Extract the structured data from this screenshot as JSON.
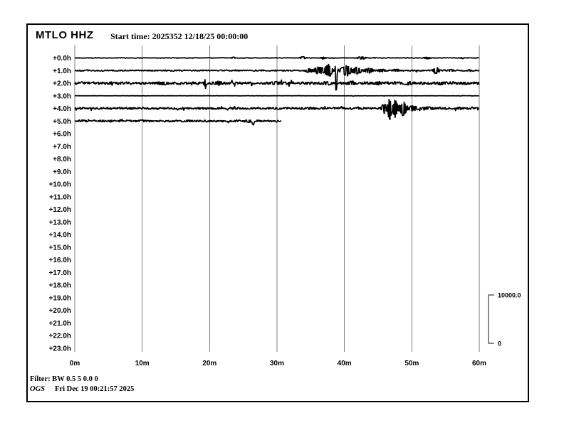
{
  "header": {
    "station": "MTLO HHZ",
    "start_time_label": "Start time: 2025352 12/18/25 00:00:00"
  },
  "footer": {
    "filter_label": "Filter: BW 0.5 5 0.0 0",
    "agency": "OGS",
    "generated_label": "Fri Dec 19 00:21:57 2025"
  },
  "scale": {
    "max_label": "10000.0",
    "min_label": "0"
  },
  "colors": {
    "trace": "#000000",
    "grid": "#7d7d7d",
    "frame": "#000000",
    "background": "#ffffff"
  },
  "chart_data": {
    "type": "line",
    "title": "MTLO HHZ helicorder, 24 hourly rows of 60 minutes",
    "x_axis": {
      "unit": "minutes",
      "range": [
        0,
        60
      ],
      "tick_labels": [
        "0m",
        "10m",
        "20m",
        "30m",
        "40m",
        "50m",
        "60m"
      ],
      "grid": true
    },
    "y_axis": {
      "unit": "hours after start",
      "rows": 24
    },
    "scale_max_counts": 10000,
    "rows": [
      {
        "label": "+0.0h",
        "has_trace": true,
        "start_min": 0,
        "end_min": 60,
        "noise_counts": 70,
        "events": [
          {
            "minute": 23.5,
            "amp_counts": 200,
            "duration_min": 1.0
          },
          {
            "minute": 33.8,
            "amp_counts": 280,
            "duration_min": 1.5
          },
          {
            "minute": 36.8,
            "amp_counts": 300,
            "duration_min": 1.0
          },
          {
            "minute": 42.5,
            "amp_counts": 320,
            "duration_min": 2.0
          },
          {
            "minute": 52.3,
            "amp_counts": 260,
            "duration_min": 1.5
          },
          {
            "minute": 57.5,
            "amp_counts": 200,
            "duration_min": 0.8
          }
        ]
      },
      {
        "label": "+1.0h",
        "has_trace": true,
        "start_min": 0,
        "end_min": 60,
        "noise_counts": 150,
        "events": [
          {
            "minute": 34.8,
            "amp_counts": 500,
            "duration_min": 2.0
          },
          {
            "minute": 36.3,
            "amp_counts": 900,
            "duration_min": 2.4
          },
          {
            "minute": 37.6,
            "amp_counts": 1600,
            "duration_min": 1.6
          },
          {
            "minute": 38.77,
            "amp_counts": 6800,
            "duration_min": 0.3
          },
          {
            "minute": 40.3,
            "amp_counts": 1300,
            "duration_min": 2.4
          },
          {
            "minute": 41.8,
            "amp_counts": 900,
            "duration_min": 2.0
          },
          {
            "minute": 43.6,
            "amp_counts": 600,
            "duration_min": 2.2
          },
          {
            "minute": 45.5,
            "amp_counts": 400,
            "duration_min": 2.0
          },
          {
            "minute": 47.6,
            "amp_counts": 350,
            "duration_min": 1.5
          },
          {
            "minute": 53.6,
            "amp_counts": 700,
            "duration_min": 1.6
          },
          {
            "minute": 55.8,
            "amp_counts": 300,
            "duration_min": 1.5
          },
          {
            "minute": 58.5,
            "amp_counts": 250,
            "duration_min": 1.0
          }
        ]
      },
      {
        "label": "+2.0h",
        "has_trace": true,
        "start_min": 0,
        "end_min": 60,
        "noise_counts": 300,
        "events": [
          {
            "minute": 13.0,
            "amp_counts": 420,
            "duration_min": 3.0
          },
          {
            "minute": 19.35,
            "amp_counts": 1250,
            "duration_min": 0.5
          },
          {
            "minute": 21.3,
            "amp_counts": 500,
            "duration_min": 2.0
          },
          {
            "minute": 30.0,
            "amp_counts": 380,
            "duration_min": 4.0
          },
          {
            "minute": 37.5,
            "amp_counts": 430,
            "duration_min": 3.0
          },
          {
            "minute": 41.0,
            "amp_counts": 460,
            "duration_min": 2.5
          },
          {
            "minute": 45.0,
            "amp_counts": 380,
            "duration_min": 3.0
          },
          {
            "minute": 49.5,
            "amp_counts": 400,
            "duration_min": 3.0
          },
          {
            "minute": 54.5,
            "amp_counts": 380,
            "duration_min": 3.0
          },
          {
            "minute": 58.0,
            "amp_counts": 350,
            "duration_min": 2.0
          }
        ]
      },
      {
        "label": "+3.0h",
        "has_trace": true,
        "start_min": 0,
        "end_min": 60,
        "noise_counts": 30,
        "events": [
          {
            "minute": 41.3,
            "amp_counts": 130,
            "duration_min": 0.3
          },
          {
            "minute": 57.2,
            "amp_counts": 110,
            "duration_min": 0.4
          }
        ]
      },
      {
        "label": "+4.0h",
        "has_trace": true,
        "start_min": 0,
        "end_min": 60,
        "noise_counts": 230,
        "events": [
          {
            "minute": 30.0,
            "amp_counts": 250,
            "duration_min": 2.0
          },
          {
            "minute": 35.0,
            "amp_counts": 300,
            "duration_min": 2.0
          },
          {
            "minute": 45.9,
            "amp_counts": 1200,
            "duration_min": 1.2
          },
          {
            "minute": 46.7,
            "amp_counts": 2600,
            "duration_min": 0.9
          },
          {
            "minute": 47.5,
            "amp_counts": 2000,
            "duration_min": 1.3
          },
          {
            "minute": 48.7,
            "amp_counts": 1700,
            "duration_min": 1.8
          },
          {
            "minute": 50.2,
            "amp_counts": 700,
            "duration_min": 2.2
          },
          {
            "minute": 52.5,
            "amp_counts": 400,
            "duration_min": 3.0
          },
          {
            "minute": 57.0,
            "amp_counts": 300,
            "duration_min": 2.0
          }
        ]
      },
      {
        "label": "+5.0h",
        "has_trace": true,
        "start_min": 0,
        "end_min": 30.6,
        "noise_counts": 230,
        "events": [
          {
            "minute": 10.0,
            "amp_counts": 280,
            "duration_min": 2.0
          },
          {
            "minute": 17.0,
            "amp_counts": 260,
            "duration_min": 2.0
          },
          {
            "minute": 25.9,
            "amp_counts": 380,
            "duration_min": 1.2
          },
          {
            "minute": 26.45,
            "amp_counts": 980,
            "duration_min": 0.5
          }
        ]
      },
      {
        "label": "+6.0h",
        "has_trace": false
      },
      {
        "label": "+7.0h",
        "has_trace": false
      },
      {
        "label": "+8.0h",
        "has_trace": false
      },
      {
        "label": "+9.0h",
        "has_trace": false
      },
      {
        "label": "+10.0h",
        "has_trace": false
      },
      {
        "label": "+11.0h",
        "has_trace": false
      },
      {
        "label": "+12.0h",
        "has_trace": false
      },
      {
        "label": "+13.0h",
        "has_trace": false
      },
      {
        "label": "+14.0h",
        "has_trace": false
      },
      {
        "label": "+15.0h",
        "has_trace": false
      },
      {
        "label": "+16.0h",
        "has_trace": false
      },
      {
        "label": "+17.0h",
        "has_trace": false
      },
      {
        "label": "+18.0h",
        "has_trace": false
      },
      {
        "label": "+19.0h",
        "has_trace": false
      },
      {
        "label": "+20.0h",
        "has_trace": false
      },
      {
        "label": "+21.0h",
        "has_trace": false
      },
      {
        "label": "+22.0h",
        "has_trace": false
      },
      {
        "label": "+23.0h",
        "has_trace": false
      }
    ]
  }
}
